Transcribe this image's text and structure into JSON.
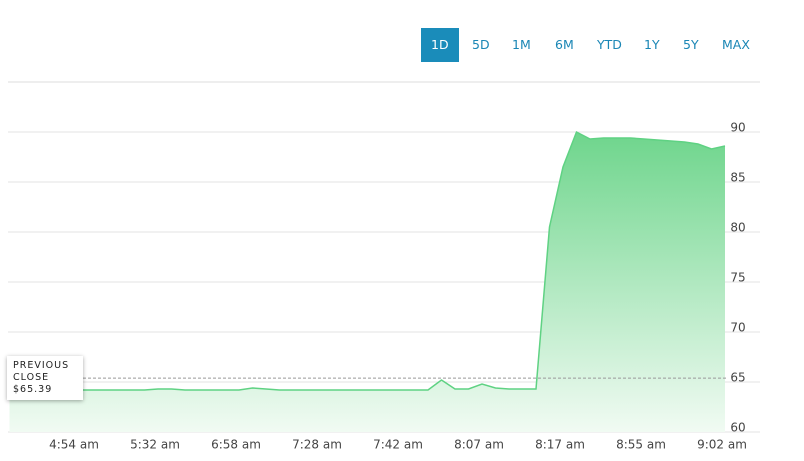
{
  "toolbar": {
    "buttons": [
      "1D",
      "5D",
      "1M",
      "6M",
      "YTD",
      "1Y",
      "5Y",
      "MAX"
    ],
    "selected": 0
  },
  "chart_data": {
    "type": "area",
    "categories": [
      null,
      null,
      null,
      null,
      null,
      "4:54 am",
      null,
      null,
      null,
      null,
      null,
      "5:32 am",
      null,
      null,
      null,
      null,
      null,
      "6:58 am",
      null,
      null,
      null,
      null,
      null,
      "7:28 am",
      null,
      null,
      null,
      null,
      null,
      "7:42 am",
      null,
      null,
      null,
      null,
      null,
      "8:07 am",
      null,
      null,
      null,
      null,
      null,
      "8:17 am",
      null,
      null,
      null,
      null,
      null,
      "8:55 am",
      null,
      null,
      null,
      null,
      null,
      "9:02 am"
    ],
    "series": [
      {
        "color": "#5fd283",
        "values": [
          64.1,
          64.1,
          64.1,
          64.2,
          64.2,
          64.2,
          64.2,
          64.2,
          64.2,
          64.2,
          64.2,
          64.3,
          64.3,
          64.2,
          64.2,
          64.2,
          64.2,
          64.2,
          64.4,
          64.3,
          64.2,
          64.2,
          64.2,
          64.2,
          64.2,
          64.2,
          64.2,
          64.2,
          64.2,
          64.2,
          64.2,
          64.2,
          65.2,
          64.3,
          64.3,
          64.8,
          64.4,
          64.3,
          64.3,
          64.3,
          80.5,
          86.5,
          90.0,
          89.3,
          89.4,
          89.4,
          89.4,
          89.3,
          89.2,
          89.1,
          89.0,
          88.8,
          88.3,
          88.6
        ]
      }
    ],
    "ylim": [
      60,
      95
    ],
    "yticks": [
      60,
      65,
      70,
      75,
      80,
      85,
      90
    ],
    "grid": true,
    "previous_close": {
      "label": "PREVIOUS CLOSE",
      "value": 65.39,
      "value_label": "$65.39"
    }
  }
}
